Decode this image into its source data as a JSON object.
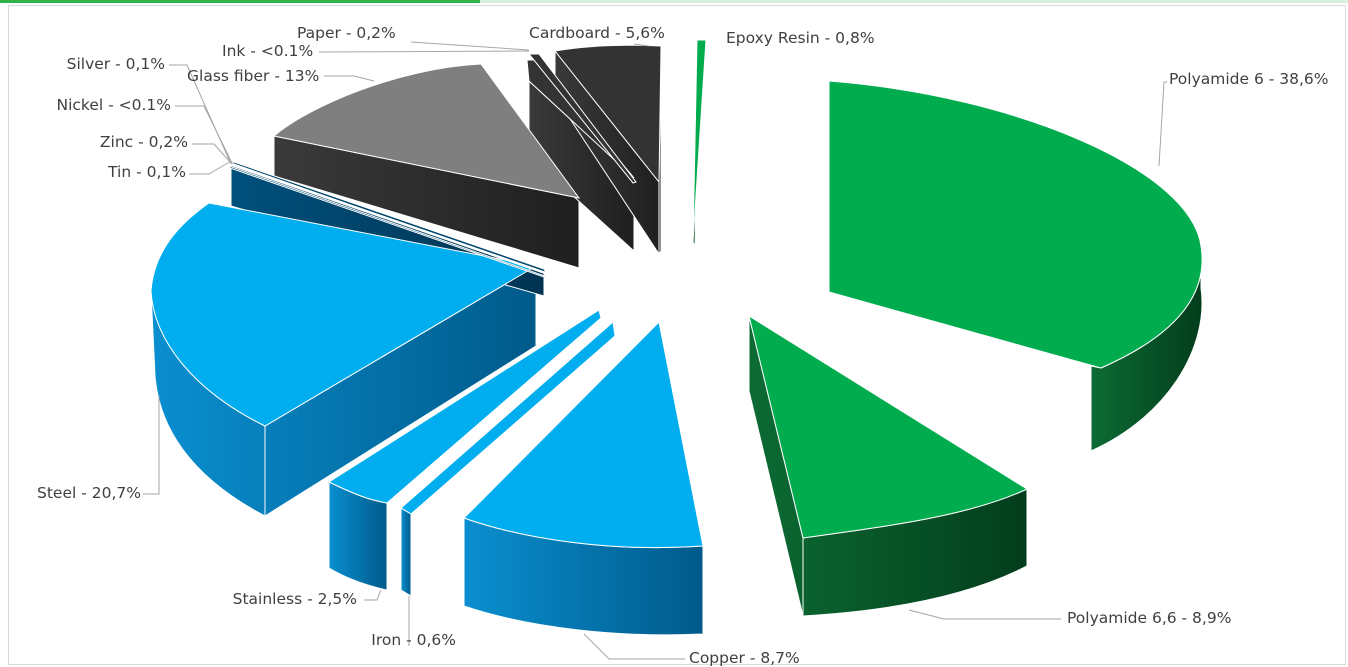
{
  "chart_data": {
    "type": "pie",
    "variant": "3d-exploded",
    "title": "",
    "legend": "none",
    "categories": [
      "Polyamide 6",
      "Polyamide 6,6",
      "Copper",
      "Iron",
      "Stainless",
      "Steel",
      "Tin",
      "Zinc",
      "Nickel",
      "Silver",
      "Glass fiber",
      "Ink",
      "Paper",
      "Cardboard",
      "Epoxy Resin"
    ],
    "values": [
      38.6,
      8.9,
      8.7,
      0.6,
      2.5,
      20.7,
      0.1,
      0.2,
      0.05,
      0.1,
      13,
      0.05,
      0.2,
      5.6,
      0.8
    ],
    "labels": [
      "Polyamide 6 - 38,6%",
      "Polyamide 6,6 - 8,9%",
      "Copper - 8,7%",
      "Iron - 0,6%",
      "Stainless - 2,5%",
      "Steel - 20,7%",
      "Tin - 0,1%",
      "Zinc - 0,2%",
      "Nickel - <0.1%",
      "Silver - 0,1%",
      "Glass fiber - 13%",
      "Ink - <0.1%",
      "Paper - 0,2%",
      "Cardboard - 5,6%",
      "Epoxy Resin - 0,8%"
    ],
    "colors": {
      "green": "#00ac4e",
      "light_blue": "#00aeef",
      "dark_blue": "#00456b",
      "gray": "#7f7f7f",
      "dark_gray": "#333333"
    }
  }
}
